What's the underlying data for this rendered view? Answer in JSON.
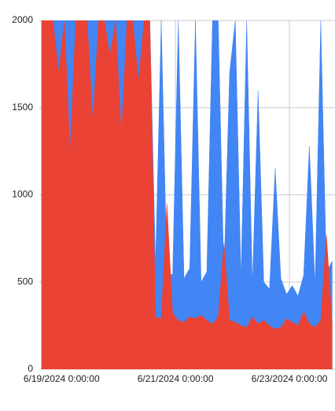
{
  "chart_data": {
    "type": "area",
    "x": [
      -0.35,
      -0.25,
      -0.15,
      -0.05,
      0.05,
      0.15,
      0.25,
      0.35,
      0.45,
      0.55,
      0.65,
      0.75,
      0.85,
      0.95,
      1.05,
      1.15,
      1.25,
      1.35,
      1.45,
      1.55,
      1.65,
      1.75,
      1.85,
      1.95,
      2.05,
      2.15,
      2.25,
      2.35,
      2.45,
      2.55,
      2.65,
      2.75,
      2.85,
      2.95,
      3.05,
      3.15,
      3.25,
      3.35,
      3.45,
      3.55,
      3.65,
      3.75,
      3.85,
      3.95,
      4.05,
      4.15,
      4.25,
      4.35,
      4.45,
      4.55,
      4.65,
      4.75
    ],
    "series": [
      {
        "color": "#4285f4",
        "values": [
          2000,
          2000,
          2000,
          2000,
          2000,
          2000,
          2000,
          2000,
          2000,
          2000,
          2000,
          2000,
          2000,
          2000,
          2000,
          2000,
          2000,
          2000,
          2000,
          2000,
          600,
          2000,
          560,
          540,
          2000,
          520,
          580,
          2000,
          500,
          560,
          2000,
          2000,
          540,
          1700,
          2000,
          520,
          2000,
          480,
          1600,
          500,
          460,
          1150,
          520,
          430,
          480,
          420,
          540,
          1280,
          480,
          2000,
          560,
          620
        ]
      },
      {
        "color": "#ea4335",
        "values": [
          2000,
          2000,
          2000,
          1700,
          2000,
          1250,
          2000,
          2000,
          2000,
          1420,
          2000,
          2000,
          1800,
          2000,
          1340,
          2000,
          2000,
          1650,
          2000,
          2000,
          300,
          290,
          950,
          320,
          280,
          270,
          300,
          290,
          310,
          280,
          260,
          300,
          720,
          280,
          270,
          250,
          240,
          300,
          260,
          280,
          250,
          230,
          240,
          290,
          270,
          250,
          330,
          260,
          240,
          280,
          770,
          260
        ]
      }
    ],
    "xlim": [
      -0.39,
      4.8
    ],
    "xticks": [
      {
        "value": 0,
        "label": "6/19/2024 0:00:00"
      },
      {
        "value": 2,
        "label": "6/21/2024 0:00:00"
      },
      {
        "value": 4,
        "label": "6/23/2024 0:00:00"
      }
    ],
    "ylim": [
      0,
      2000
    ],
    "yticks": [
      0,
      500,
      1000,
      1500,
      2000
    ],
    "grid": true
  }
}
